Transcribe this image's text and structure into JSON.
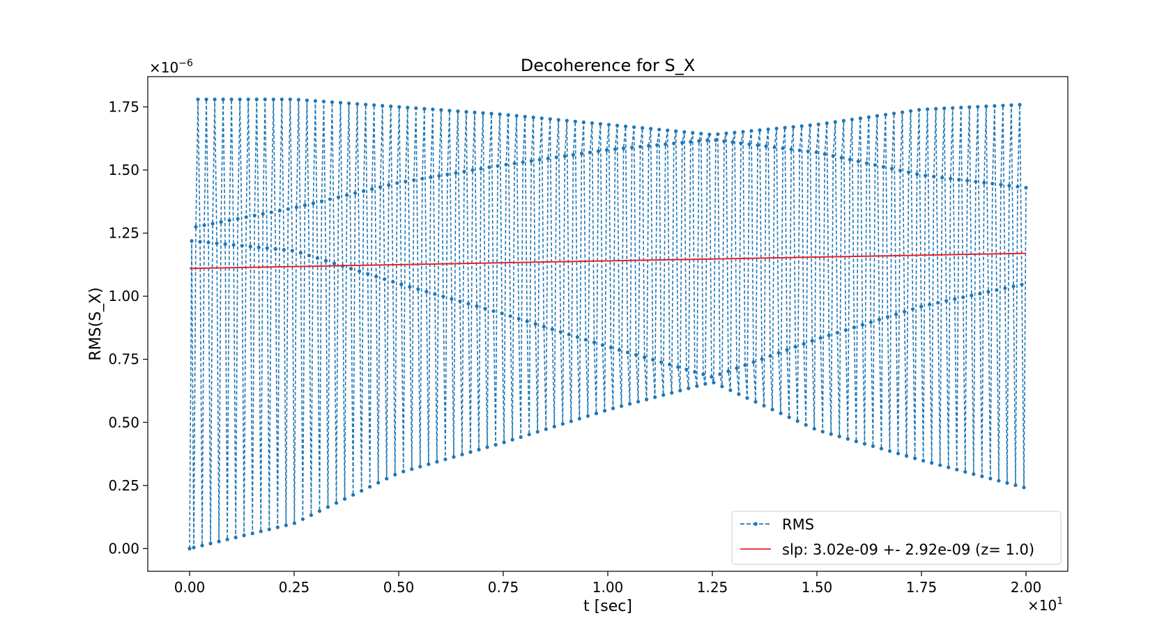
{
  "chart_data": {
    "type": "line",
    "title": "Decoherence for S_X",
    "xlabel": "t [sec]",
    "ylabel": "RMS(S_X)",
    "x_scale_text": "×10",
    "x_scale_exp": "1",
    "y_scale_text": "×10",
    "y_scale_exp": "−6",
    "xlim": [
      -0.1,
      2.1
    ],
    "ylim": [
      -0.09,
      1.87
    ],
    "x_ticks": [
      0.0,
      0.25,
      0.5,
      0.75,
      1.0,
      1.25,
      1.5,
      1.75,
      2.0
    ],
    "x_tick_labels": [
      "0.00",
      "0.25",
      "0.50",
      "0.75",
      "1.00",
      "1.25",
      "1.50",
      "1.75",
      "2.00"
    ],
    "y_ticks": [
      0.0,
      0.25,
      0.5,
      0.75,
      1.0,
      1.25,
      1.5,
      1.75
    ],
    "y_tick_labels": [
      "0.00",
      "0.25",
      "0.50",
      "0.75",
      "1.00",
      "1.25",
      "1.50",
      "1.75"
    ],
    "grid": false,
    "legend_position": "lower-right",
    "series": [
      {
        "name": "RMS",
        "style": "dashed-markers",
        "color": "#1f77b4",
        "n_points": 400,
        "x_range": [
          0.0,
          2.0
        ],
        "upper_envelope": [
          [
            0.0,
            1.78
          ],
          [
            0.25,
            1.78
          ],
          [
            0.5,
            1.75
          ],
          [
            0.75,
            1.72
          ],
          [
            1.0,
            1.68
          ],
          [
            1.25,
            1.64
          ],
          [
            1.5,
            1.68
          ],
          [
            1.75,
            1.74
          ],
          [
            2.0,
            1.76
          ]
        ],
        "lower_envelope": [
          [
            0.0,
            0.0
          ],
          [
            0.25,
            0.1
          ],
          [
            0.5,
            0.3
          ],
          [
            0.75,
            0.42
          ],
          [
            1.0,
            0.55
          ],
          [
            1.25,
            0.66
          ],
          [
            1.5,
            0.47
          ],
          [
            1.75,
            0.35
          ],
          [
            2.0,
            0.24
          ]
        ],
        "inner_upper_band": [
          [
            0.0,
            1.27
          ],
          [
            0.25,
            1.35
          ],
          [
            0.5,
            1.45
          ],
          [
            0.75,
            1.52
          ],
          [
            1.0,
            1.58
          ],
          [
            1.25,
            1.62
          ],
          [
            1.5,
            1.57
          ],
          [
            1.75,
            1.48
          ],
          [
            2.0,
            1.43
          ]
        ],
        "inner_lower_band": [
          [
            0.0,
            1.22
          ],
          [
            0.25,
            1.18
          ],
          [
            0.5,
            1.05
          ],
          [
            0.75,
            0.93
          ],
          [
            1.0,
            0.8
          ],
          [
            1.25,
            0.68
          ],
          [
            1.5,
            0.83
          ],
          [
            1.75,
            0.96
          ],
          [
            2.0,
            1.05
          ]
        ]
      },
      {
        "name": "slp: 3.02e-09 +- 2.92e-09 (z= 1.0)",
        "style": "solid",
        "color": "#e8202a",
        "x": [
          0.0,
          2.0
        ],
        "y": [
          1.11,
          1.17
        ]
      }
    ]
  }
}
